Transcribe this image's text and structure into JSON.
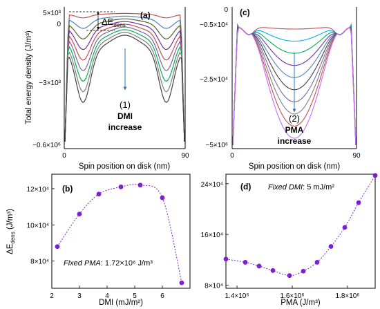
{
  "chart_data": [
    {
      "panel": "(a)",
      "type": "line",
      "xlabel": "Spin position on disk (nm)",
      "ylabel": "Total energy density (J/m³)",
      "xlim": [
        0,
        90
      ],
      "x_ticks": [
        "0",
        "90"
      ],
      "y_ticks": [
        "5×10³",
        "0",
        "−3×10³",
        "−0.6×10⁶"
      ],
      "annotation_delta": "ΔE",
      "annotation_delta_sub": "dens",
      "annotation_number": "(1)",
      "annotation_text": "DMI",
      "annotation_text2": "increase",
      "series_colors": [
        "#c0504d",
        "#4f81bd",
        "#4f6228",
        "#7030a0",
        "#c0504d",
        "#8064a2",
        "#00b050",
        "#7f7f7f",
        "#404040"
      ]
    },
    {
      "panel": "(c)",
      "type": "line",
      "xlabel": "Spin position on disk (nm)",
      "ylabel": "",
      "xlim": [
        0,
        90
      ],
      "x_ticks": [
        "0",
        "90"
      ],
      "y_ticks": [
        "0",
        "−0.5×10⁴",
        "−2.5×10⁴",
        "−5×10⁶"
      ],
      "annotation_number": "(2)",
      "annotation_text": "PMA",
      "annotation_text2": "increase",
      "series_colors": [
        "#c0504d",
        "#00b0f0",
        "#00b050",
        "#7030a0",
        "#4f81bd",
        "#404040",
        "#8064a2",
        "#7f7f7f",
        "#c0504d",
        "#cc66ff"
      ]
    },
    {
      "panel": "(b)",
      "type": "scatter",
      "xlabel": "DMI (mJ/m²)",
      "ylabel_main": "ΔE",
      "ylabel_sub": "dens",
      "ylabel_unit": " (J/m³)",
      "xlim": [
        2,
        7
      ],
      "ylim": [
        6.5,
        12.8
      ],
      "x_ticks": [
        2,
        3,
        4,
        5,
        6
      ],
      "y_ticks": [
        "8×10⁴",
        "10×10⁴",
        "12×10⁴"
      ],
      "y_tick_values": [
        8,
        10,
        12
      ],
      "x": [
        2.2,
        3.0,
        3.7,
        4.5,
        5.2,
        6.0,
        6.7
      ],
      "y": [
        8.8,
        10.6,
        11.7,
        12.1,
        12.2,
        11.5,
        6.8
      ],
      "fixed_label": "Fixed PMA",
      "fixed_value": ": 1.72×10⁶ J/m³",
      "marker_color": "#7b1fd0"
    },
    {
      "panel": "(d)",
      "type": "scatter",
      "xlabel": "PMA (J/m³)",
      "xlim": [
        1.36,
        1.9
      ],
      "ylim": [
        7.5,
        25.5
      ],
      "x_ticks": [
        "1.4×10⁶",
        "1.6×10⁶",
        "1.8×10⁶"
      ],
      "x_tick_values": [
        1.4,
        1.6,
        1.8
      ],
      "y_ticks": [
        "8×10⁴",
        "16×10⁴",
        "24×10⁴"
      ],
      "y_tick_values": [
        8,
        16,
        24
      ],
      "x": [
        1.36,
        1.43,
        1.48,
        1.53,
        1.59,
        1.64,
        1.69,
        1.74,
        1.79,
        1.84,
        1.9
      ],
      "y": [
        12.1,
        11.6,
        11.0,
        10.3,
        9.5,
        10.2,
        11.6,
        14.1,
        17.1,
        21.0,
        25.3
      ],
      "fixed_label": "Fixed DMI",
      "fixed_value": ": 5 mJ/m²",
      "marker_color": "#7b1fd0"
    }
  ]
}
